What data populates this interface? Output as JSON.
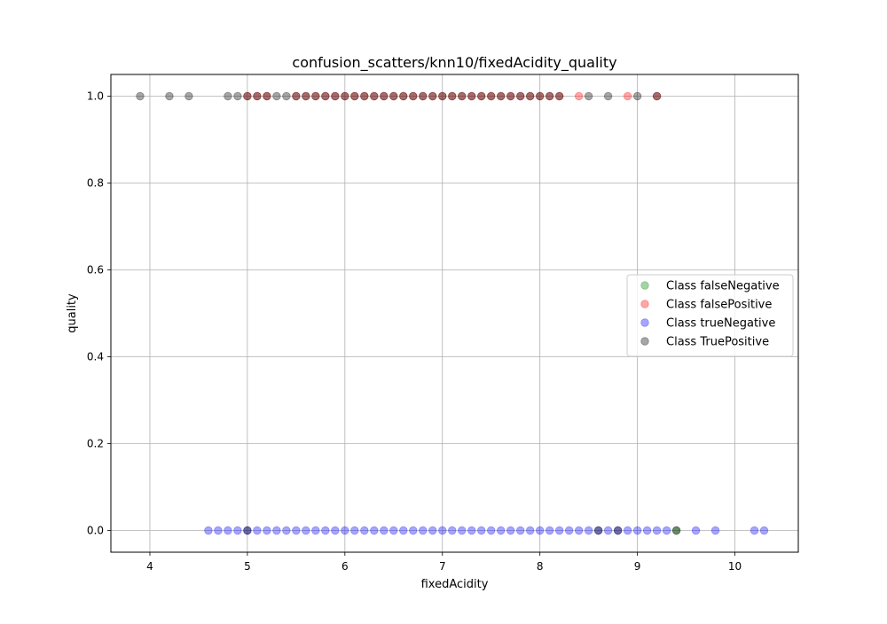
{
  "chart_data": {
    "type": "scatter",
    "title": "confusion_scatters/knn10/fixedAcidity_quality",
    "xlabel": "fixedAcidity",
    "ylabel": "quality",
    "xlim": [
      3.6,
      10.65
    ],
    "ylim": [
      -0.05,
      1.05
    ],
    "xticks": [
      {
        "value": 4,
        "label": "4"
      },
      {
        "value": 5,
        "label": "5"
      },
      {
        "value": 6,
        "label": "6"
      },
      {
        "value": 7,
        "label": "7"
      },
      {
        "value": 8,
        "label": "8"
      },
      {
        "value": 9,
        "label": "9"
      },
      {
        "value": 10,
        "label": "10"
      }
    ],
    "yticks": [
      {
        "value": 0.0,
        "label": "0.0"
      },
      {
        "value": 0.2,
        "label": "0.2"
      },
      {
        "value": 0.4,
        "label": "0.4"
      },
      {
        "value": 0.6,
        "label": "0.6"
      },
      {
        "value": 0.8,
        "label": "0.8"
      },
      {
        "value": 1.0,
        "label": "1.0"
      }
    ],
    "grid": true,
    "legend_position": "center-right",
    "series": [
      {
        "name": "Class falseNegative",
        "color": "#008000",
        "alpha": 0.35,
        "points": [
          {
            "x": 9.4,
            "y": 0
          }
        ]
      },
      {
        "name": "Class falsePositive",
        "color": "#ff0000",
        "alpha": 0.35,
        "points": [
          {
            "x": 5.0,
            "y": 1
          },
          {
            "x": 5.1,
            "y": 1
          },
          {
            "x": 5.2,
            "y": 1
          },
          {
            "x": 5.5,
            "y": 1
          },
          {
            "x": 5.6,
            "y": 1
          },
          {
            "x": 5.7,
            "y": 1
          },
          {
            "x": 5.8,
            "y": 1
          },
          {
            "x": 5.9,
            "y": 1
          },
          {
            "x": 6.0,
            "y": 1
          },
          {
            "x": 6.1,
            "y": 1
          },
          {
            "x": 6.2,
            "y": 1
          },
          {
            "x": 6.3,
            "y": 1
          },
          {
            "x": 6.4,
            "y": 1
          },
          {
            "x": 6.5,
            "y": 1
          },
          {
            "x": 6.6,
            "y": 1
          },
          {
            "x": 6.7,
            "y": 1
          },
          {
            "x": 6.8,
            "y": 1
          },
          {
            "x": 6.9,
            "y": 1
          },
          {
            "x": 7.0,
            "y": 1
          },
          {
            "x": 7.1,
            "y": 1
          },
          {
            "x": 7.2,
            "y": 1
          },
          {
            "x": 7.3,
            "y": 1
          },
          {
            "x": 7.4,
            "y": 1
          },
          {
            "x": 7.5,
            "y": 1
          },
          {
            "x": 7.6,
            "y": 1
          },
          {
            "x": 7.7,
            "y": 1
          },
          {
            "x": 7.8,
            "y": 1
          },
          {
            "x": 7.9,
            "y": 1
          },
          {
            "x": 8.0,
            "y": 1
          },
          {
            "x": 8.1,
            "y": 1
          },
          {
            "x": 8.2,
            "y": 1
          },
          {
            "x": 8.4,
            "y": 1
          },
          {
            "x": 8.9,
            "y": 1
          },
          {
            "x": 9.2,
            "y": 1
          }
        ]
      },
      {
        "name": "Class trueNegative",
        "color": "#0000ff",
        "alpha": 0.35,
        "points": [
          {
            "x": 4.6,
            "y": 0
          },
          {
            "x": 4.7,
            "y": 0
          },
          {
            "x": 4.8,
            "y": 0
          },
          {
            "x": 4.9,
            "y": 0
          },
          {
            "x": 5.0,
            "y": 0
          },
          {
            "x": 5.1,
            "y": 0
          },
          {
            "x": 5.2,
            "y": 0
          },
          {
            "x": 5.3,
            "y": 0
          },
          {
            "x": 5.4,
            "y": 0
          },
          {
            "x": 5.5,
            "y": 0
          },
          {
            "x": 5.6,
            "y": 0
          },
          {
            "x": 5.7,
            "y": 0
          },
          {
            "x": 5.8,
            "y": 0
          },
          {
            "x": 5.9,
            "y": 0
          },
          {
            "x": 6.0,
            "y": 0
          },
          {
            "x": 6.1,
            "y": 0
          },
          {
            "x": 6.2,
            "y": 0
          },
          {
            "x": 6.3,
            "y": 0
          },
          {
            "x": 6.4,
            "y": 0
          },
          {
            "x": 6.5,
            "y": 0
          },
          {
            "x": 6.6,
            "y": 0
          },
          {
            "x": 6.7,
            "y": 0
          },
          {
            "x": 6.8,
            "y": 0
          },
          {
            "x": 6.9,
            "y": 0
          },
          {
            "x": 7.0,
            "y": 0
          },
          {
            "x": 7.1,
            "y": 0
          },
          {
            "x": 7.2,
            "y": 0
          },
          {
            "x": 7.3,
            "y": 0
          },
          {
            "x": 7.4,
            "y": 0
          },
          {
            "x": 7.5,
            "y": 0
          },
          {
            "x": 7.6,
            "y": 0
          },
          {
            "x": 7.7,
            "y": 0
          },
          {
            "x": 7.8,
            "y": 0
          },
          {
            "x": 7.9,
            "y": 0
          },
          {
            "x": 8.0,
            "y": 0
          },
          {
            "x": 8.1,
            "y": 0
          },
          {
            "x": 8.2,
            "y": 0
          },
          {
            "x": 8.3,
            "y": 0
          },
          {
            "x": 8.4,
            "y": 0
          },
          {
            "x": 8.5,
            "y": 0
          },
          {
            "x": 8.6,
            "y": 0
          },
          {
            "x": 8.7,
            "y": 0
          },
          {
            "x": 8.8,
            "y": 0
          },
          {
            "x": 8.9,
            "y": 0
          },
          {
            "x": 9.0,
            "y": 0
          },
          {
            "x": 9.1,
            "y": 0
          },
          {
            "x": 9.2,
            "y": 0
          },
          {
            "x": 9.3,
            "y": 0
          },
          {
            "x": 9.6,
            "y": 0
          },
          {
            "x": 9.8,
            "y": 0
          },
          {
            "x": 10.2,
            "y": 0
          },
          {
            "x": 10.3,
            "y": 0
          }
        ]
      },
      {
        "name": "Class TruePositive",
        "color": "#000000",
        "alpha": 0.35,
        "points": [
          {
            "x": 3.9,
            "y": 1
          },
          {
            "x": 4.2,
            "y": 1
          },
          {
            "x": 4.4,
            "y": 1
          },
          {
            "x": 4.8,
            "y": 1
          },
          {
            "x": 4.9,
            "y": 1
          },
          {
            "x": 5.0,
            "y": 1
          },
          {
            "x": 5.1,
            "y": 1
          },
          {
            "x": 5.2,
            "y": 1
          },
          {
            "x": 5.3,
            "y": 1
          },
          {
            "x": 5.4,
            "y": 1
          },
          {
            "x": 5.5,
            "y": 1
          },
          {
            "x": 5.6,
            "y": 1
          },
          {
            "x": 5.7,
            "y": 1
          },
          {
            "x": 5.8,
            "y": 1
          },
          {
            "x": 5.9,
            "y": 1
          },
          {
            "x": 6.0,
            "y": 1
          },
          {
            "x": 6.1,
            "y": 1
          },
          {
            "x": 6.2,
            "y": 1
          },
          {
            "x": 6.3,
            "y": 1
          },
          {
            "x": 6.4,
            "y": 1
          },
          {
            "x": 6.5,
            "y": 1
          },
          {
            "x": 6.6,
            "y": 1
          },
          {
            "x": 6.7,
            "y": 1
          },
          {
            "x": 6.8,
            "y": 1
          },
          {
            "x": 6.9,
            "y": 1
          },
          {
            "x": 7.0,
            "y": 1
          },
          {
            "x": 7.1,
            "y": 1
          },
          {
            "x": 7.2,
            "y": 1
          },
          {
            "x": 7.3,
            "y": 1
          },
          {
            "x": 7.4,
            "y": 1
          },
          {
            "x": 7.5,
            "y": 1
          },
          {
            "x": 7.6,
            "y": 1
          },
          {
            "x": 7.7,
            "y": 1
          },
          {
            "x": 7.8,
            "y": 1
          },
          {
            "x": 7.9,
            "y": 1
          },
          {
            "x": 8.0,
            "y": 1
          },
          {
            "x": 8.1,
            "y": 1
          },
          {
            "x": 8.2,
            "y": 1
          },
          {
            "x": 8.5,
            "y": 1
          },
          {
            "x": 8.7,
            "y": 1
          },
          {
            "x": 9.0,
            "y": 1
          },
          {
            "x": 9.2,
            "y": 1
          },
          {
            "x": 5.0,
            "y": 0
          },
          {
            "x": 8.6,
            "y": 0
          },
          {
            "x": 8.8,
            "y": 0
          },
          {
            "x": 9.4,
            "y": 0
          }
        ]
      }
    ]
  }
}
